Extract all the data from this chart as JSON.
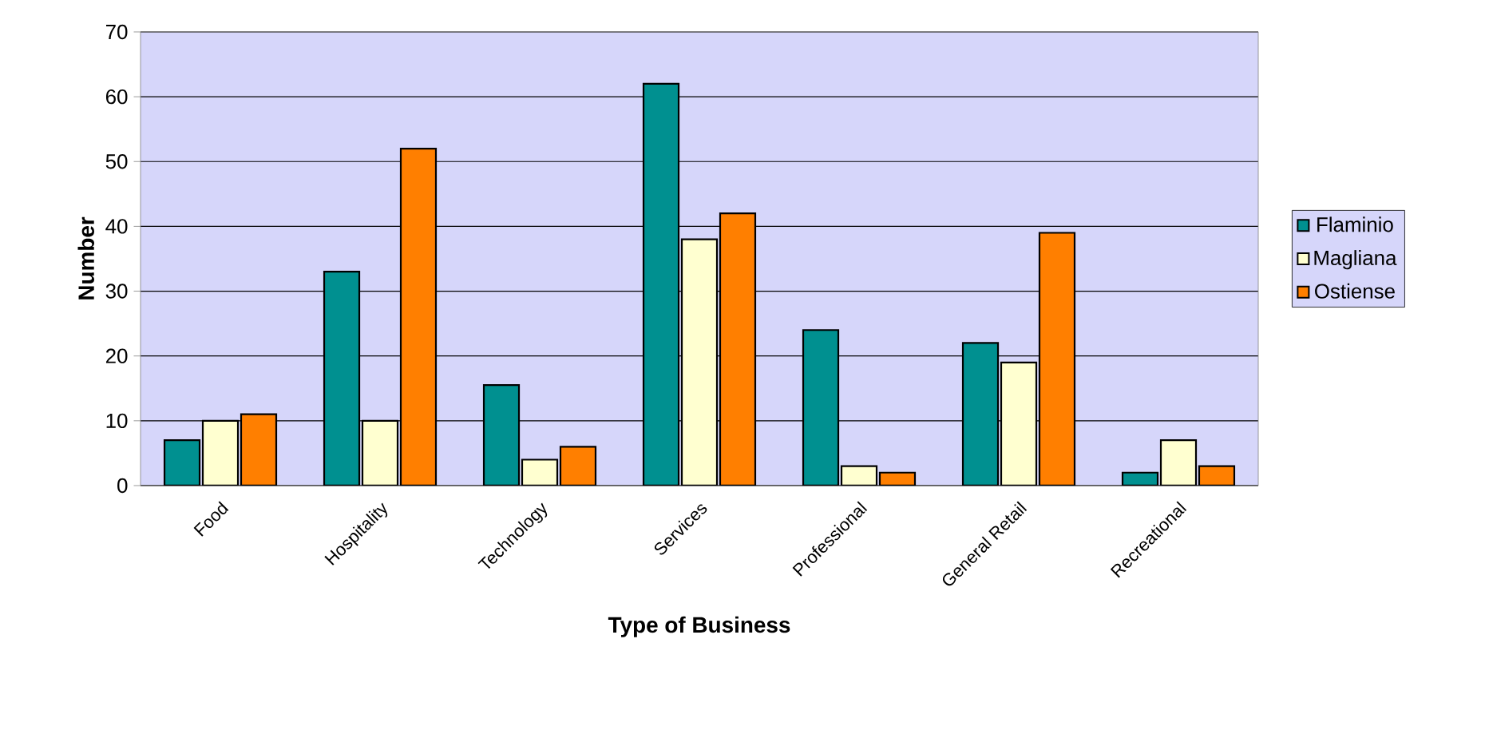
{
  "chart_data": {
    "type": "bar",
    "xlabel": "Type of Business",
    "ylabel": "Number",
    "categories": [
      "Food",
      "Hospitality",
      "Technology",
      "Services",
      "Professional",
      "General Retail",
      "Recreational"
    ],
    "series": [
      {
        "name": "Flaminio",
        "color": "#009090",
        "values": [
          7,
          33,
          15.5,
          62,
          24,
          22,
          2
        ]
      },
      {
        "name": "Magliana",
        "color": "#ffffd0",
        "values": [
          10,
          10,
          4,
          38,
          3,
          19,
          7
        ]
      },
      {
        "name": "Ostiense",
        "color": "#ff7f00",
        "values": [
          11,
          52,
          6,
          42,
          2,
          39,
          3
        ]
      }
    ],
    "ylim": [
      0,
      70
    ],
    "yticks": [
      0,
      10,
      20,
      30,
      40,
      50,
      60,
      70
    ],
    "grid": "y",
    "legend": "right"
  }
}
